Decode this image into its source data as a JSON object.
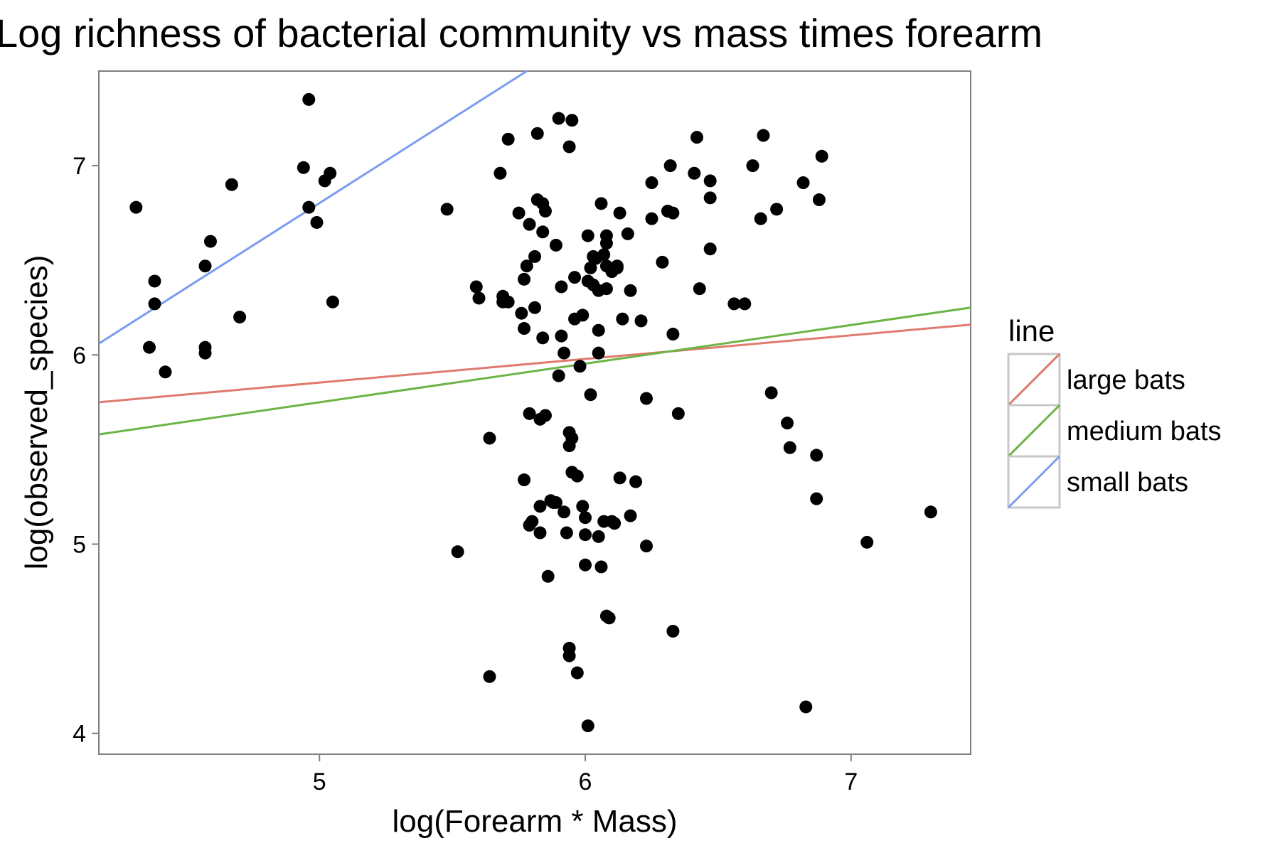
{
  "chart_data": {
    "type": "scatter",
    "title": "Log richness of bacterial community vs mass times forearm",
    "xlabel": "log(Forearm * Mass)",
    "ylabel": "log(observed_species)",
    "xlim": [
      4.17,
      7.45
    ],
    "ylim": [
      3.89,
      7.5
    ],
    "xticks": [
      5,
      6,
      7
    ],
    "yticks": [
      4,
      5,
      6,
      7
    ],
    "grid": false,
    "legend": {
      "title": "line",
      "position": "right",
      "entries": [
        {
          "label": "large bats",
          "color": "#E07A6E"
        },
        {
          "label": "medium bats",
          "color": "#6BB445"
        },
        {
          "label": "small bats",
          "color": "#7B9CF0"
        }
      ]
    },
    "lines": [
      {
        "name": "large bats",
        "color": "#E07A6E",
        "x": [
          4.17,
          7.45
        ],
        "y": [
          5.75,
          6.16
        ]
      },
      {
        "name": "medium bats",
        "color": "#6BB445",
        "x": [
          4.17,
          7.45
        ],
        "y": [
          5.58,
          6.25
        ]
      },
      {
        "name": "small bats",
        "color": "#7B9CF0",
        "x": [
          4.17,
          5.78
        ],
        "y": [
          6.06,
          7.5
        ]
      }
    ],
    "points": [
      [
        4.31,
        6.78
      ],
      [
        4.36,
        6.04
      ],
      [
        4.38,
        6.39
      ],
      [
        4.38,
        6.27
      ],
      [
        4.42,
        5.91
      ],
      [
        4.57,
        6.47
      ],
      [
        4.57,
        6.04
      ],
      [
        4.57,
        6.01
      ],
      [
        4.59,
        6.6
      ],
      [
        4.67,
        6.9
      ],
      [
        4.7,
        6.2
      ],
      [
        4.94,
        6.99
      ],
      [
        4.96,
        7.35
      ],
      [
        4.96,
        6.78
      ],
      [
        4.99,
        6.7
      ],
      [
        5.02,
        6.92
      ],
      [
        5.04,
        6.96
      ],
      [
        5.05,
        6.28
      ],
      [
        5.48,
        6.77
      ],
      [
        5.52,
        4.96
      ],
      [
        5.59,
        6.36
      ],
      [
        5.6,
        6.3
      ],
      [
        5.64,
        5.56
      ],
      [
        5.64,
        4.3
      ],
      [
        5.68,
        6.96
      ],
      [
        5.69,
        6.31
      ],
      [
        5.69,
        6.28
      ],
      [
        5.71,
        7.14
      ],
      [
        5.71,
        6.28
      ],
      [
        5.75,
        6.75
      ],
      [
        5.76,
        6.22
      ],
      [
        5.77,
        6.4
      ],
      [
        5.77,
        6.14
      ],
      [
        5.77,
        5.34
      ],
      [
        5.78,
        6.47
      ],
      [
        5.79,
        6.69
      ],
      [
        5.79,
        5.69
      ],
      [
        5.79,
        5.1
      ],
      [
        5.8,
        5.12
      ],
      [
        5.81,
        6.25
      ],
      [
        5.81,
        6.52
      ],
      [
        5.82,
        6.82
      ],
      [
        5.82,
        7.17
      ],
      [
        5.83,
        5.66
      ],
      [
        5.83,
        5.2
      ],
      [
        5.83,
        5.06
      ],
      [
        5.84,
        6.09
      ],
      [
        5.84,
        6.8
      ],
      [
        5.84,
        6.65
      ],
      [
        5.85,
        6.76
      ],
      [
        5.85,
        5.68
      ],
      [
        5.86,
        4.83
      ],
      [
        5.87,
        5.23
      ],
      [
        5.88,
        5.22
      ],
      [
        5.89,
        6.58
      ],
      [
        5.89,
        5.22
      ],
      [
        5.9,
        7.25
      ],
      [
        5.9,
        5.89
      ],
      [
        5.91,
        6.36
      ],
      [
        5.91,
        6.1
      ],
      [
        5.92,
        6.01
      ],
      [
        5.92,
        5.17
      ],
      [
        5.93,
        5.06
      ],
      [
        5.94,
        7.1
      ],
      [
        5.94,
        5.59
      ],
      [
        5.94,
        5.52
      ],
      [
        5.94,
        4.45
      ],
      [
        5.94,
        4.41
      ],
      [
        5.95,
        7.24
      ],
      [
        5.95,
        5.56
      ],
      [
        5.95,
        5.38
      ],
      [
        5.96,
        6.41
      ],
      [
        5.96,
        6.19
      ],
      [
        5.97,
        5.36
      ],
      [
        5.97,
        4.32
      ],
      [
        5.98,
        5.94
      ],
      [
        5.99,
        6.21
      ],
      [
        5.99,
        5.2
      ],
      [
        6.0,
        5.05
      ],
      [
        6.0,
        5.14
      ],
      [
        6.0,
        4.89
      ],
      [
        6.01,
        6.39
      ],
      [
        6.01,
        6.63
      ],
      [
        6.01,
        4.04
      ],
      [
        6.02,
        6.46
      ],
      [
        6.02,
        5.79
      ],
      [
        6.03,
        6.37
      ],
      [
        6.03,
        6.52
      ],
      [
        6.04,
        6.51
      ],
      [
        6.05,
        6.34
      ],
      [
        6.05,
        6.13
      ],
      [
        6.05,
        6.01
      ],
      [
        6.05,
        5.04
      ],
      [
        6.06,
        6.8
      ],
      [
        6.06,
        4.88
      ],
      [
        6.07,
        6.53
      ],
      [
        6.07,
        5.12
      ],
      [
        6.08,
        6.63
      ],
      [
        6.08,
        6.59
      ],
      [
        6.08,
        6.47
      ],
      [
        6.08,
        6.35
      ],
      [
        6.08,
        4.62
      ],
      [
        6.09,
        4.61
      ],
      [
        6.1,
        6.44
      ],
      [
        6.1,
        5.12
      ],
      [
        6.11,
        5.11
      ],
      [
        6.12,
        6.46
      ],
      [
        6.12,
        6.47
      ],
      [
        6.13,
        6.75
      ],
      [
        6.13,
        5.35
      ],
      [
        6.14,
        6.19
      ],
      [
        6.16,
        6.64
      ],
      [
        6.17,
        6.34
      ],
      [
        6.17,
        5.15
      ],
      [
        6.19,
        5.33
      ],
      [
        6.21,
        6.18
      ],
      [
        6.23,
        5.77
      ],
      [
        6.23,
        4.99
      ],
      [
        6.25,
        6.91
      ],
      [
        6.25,
        6.72
      ],
      [
        6.29,
        6.49
      ],
      [
        6.31,
        6.76
      ],
      [
        6.32,
        7.0
      ],
      [
        6.33,
        6.75
      ],
      [
        6.33,
        6.11
      ],
      [
        6.33,
        4.54
      ],
      [
        6.35,
        5.69
      ],
      [
        6.41,
        6.96
      ],
      [
        6.42,
        7.15
      ],
      [
        6.43,
        6.35
      ],
      [
        6.47,
        6.92
      ],
      [
        6.47,
        6.83
      ],
      [
        6.47,
        6.56
      ],
      [
        6.56,
        6.27
      ],
      [
        6.6,
        6.27
      ],
      [
        6.63,
        7.0
      ],
      [
        6.66,
        6.72
      ],
      [
        6.67,
        7.16
      ],
      [
        6.7,
        5.8
      ],
      [
        6.72,
        6.77
      ],
      [
        6.76,
        5.64
      ],
      [
        6.77,
        5.51
      ],
      [
        6.82,
        6.91
      ],
      [
        6.83,
        4.14
      ],
      [
        6.87,
        5.47
      ],
      [
        6.87,
        5.24
      ],
      [
        6.88,
        6.82
      ],
      [
        6.89,
        7.05
      ],
      [
        7.06,
        5.01
      ],
      [
        7.3,
        5.17
      ]
    ]
  }
}
